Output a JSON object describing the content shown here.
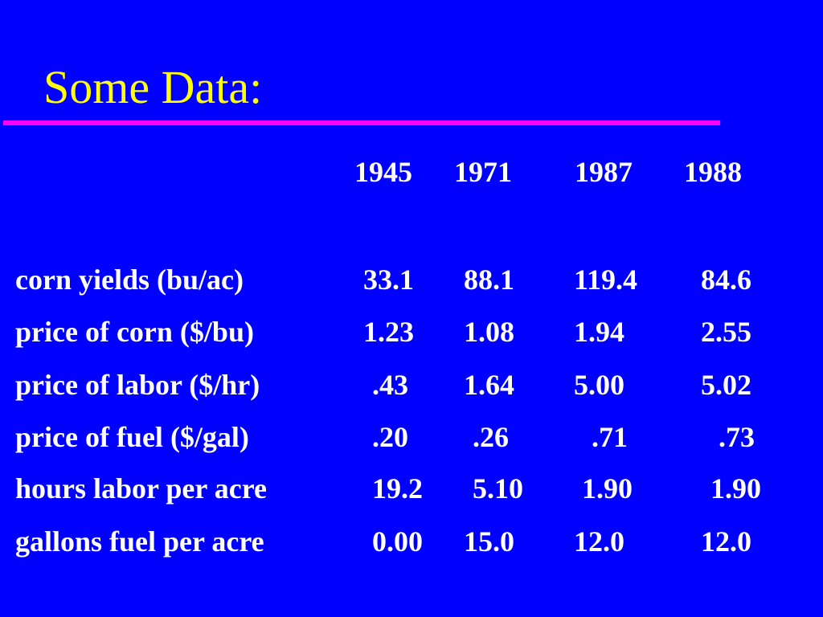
{
  "slide": {
    "title": "Some Data:",
    "colors": {
      "background": "#0000FF",
      "title": "#FFFF00",
      "rule": "#FF00FF",
      "text": "#FFFFFF"
    }
  },
  "table": {
    "years": [
      "1945",
      "1971",
      "1987",
      "1988"
    ],
    "rows": [
      {
        "label": "corn yields (bu/ac)",
        "values": [
          "33.1",
          "88.1",
          "119.4",
          "84.6"
        ]
      },
      {
        "label": "price of corn ($/bu)",
        "values": [
          "1.23",
          "1.08",
          "1.94",
          "2.55"
        ]
      },
      {
        "label": "price of labor ($/hr)",
        "values": [
          ".43",
          "1.64",
          "5.00",
          "5.02"
        ]
      },
      {
        "label": "price of fuel ($/gal)",
        "values": [
          ".20",
          ".26",
          ".71",
          ".73"
        ]
      },
      {
        "label": "hours labor per acre",
        "values": [
          "19.2",
          "5.10",
          "1.90",
          "1.90"
        ]
      },
      {
        "label": "gallons fuel per acre",
        "values": [
          "0.00",
          "15.0",
          "12.0",
          "12.0"
        ]
      }
    ]
  }
}
